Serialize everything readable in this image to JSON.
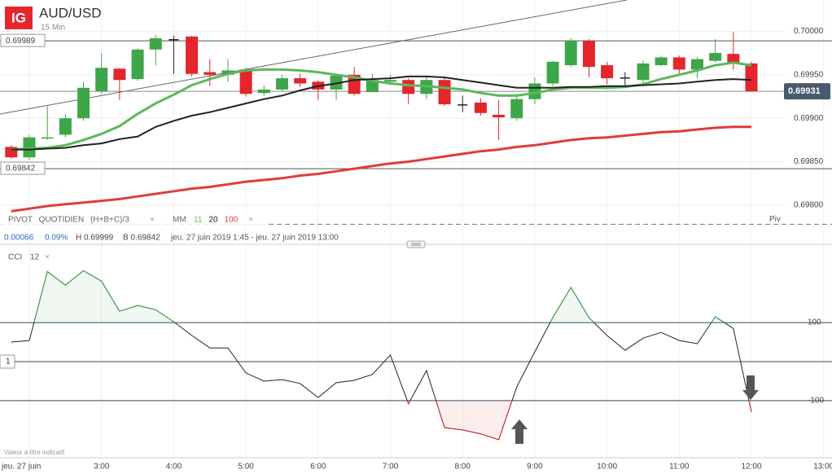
{
  "ui": {
    "logo": "IG",
    "symbol": "AUD/USD",
    "timeframe": "15 Min",
    "close_icon": "×",
    "info": {
      "change": "0.00066",
      "change_pct": "0.09%",
      "high": "H 0.69999",
      "low": "B 0.69842",
      "range": "jeu. 27 juin 2019 1:45 - jeu. 27 juin 2019 13:00"
    },
    "cci_label": "CCI",
    "cci_period": "12",
    "cci_marker": "1",
    "disclaimer": "Valeur à titre indicatif"
  },
  "chart_data": [
    {
      "type": "candlestick",
      "x": [
        1.75,
        2,
        2.25,
        2.5,
        2.75,
        3,
        3.25,
        3.5,
        3.75,
        4,
        4.25,
        4.5,
        4.75,
        5,
        5.25,
        5.5,
        5.75,
        6,
        6.25,
        6.5,
        6.75,
        7,
        7.25,
        7.5,
        7.75,
        8,
        8.25,
        8.5,
        8.75,
        9,
        9.25,
        9.5,
        9.75,
        10,
        10.25,
        10.5,
        10.75,
        11,
        11.25,
        11.5,
        11.75,
        12
      ],
      "open": [
        0.69867,
        0.69855,
        0.69877,
        0.69881,
        0.699,
        0.69931,
        0.69957,
        0.69945,
        0.69979,
        0.69991,
        0.69994,
        0.69953,
        0.6995,
        0.69956,
        0.69929,
        0.69933,
        0.69946,
        0.69942,
        0.69933,
        0.6995,
        0.6993,
        0.69942,
        0.69944,
        0.69928,
        0.69944,
        0.69916,
        0.69918,
        0.69904,
        0.699,
        0.69922,
        0.6994,
        0.69961,
        0.69989,
        0.69961,
        0.69947,
        0.69944,
        0.69961,
        0.6997,
        0.69956,
        0.69966,
        0.69974,
        0.69963
      ],
      "high": [
        0.69869,
        0.69881,
        0.69914,
        0.69905,
        0.69942,
        0.69975,
        0.69958,
        0.69981,
        0.69996,
        0.69995,
        0.69995,
        0.69968,
        0.69968,
        0.69958,
        0.69938,
        0.6995,
        0.69951,
        0.69944,
        0.69951,
        0.69959,
        0.69951,
        0.6995,
        0.69946,
        0.69949,
        0.69946,
        0.69926,
        0.69923,
        0.69921,
        0.69928,
        0.69947,
        0.69966,
        0.69992,
        0.69991,
        0.69965,
        0.69953,
        0.69966,
        0.69972,
        0.69972,
        0.6997,
        0.69991,
        0.69999,
        0.69965
      ],
      "low": [
        0.69853,
        0.69852,
        0.69875,
        0.69878,
        0.69897,
        0.69928,
        0.69921,
        0.69943,
        0.69961,
        0.69951,
        0.69948,
        0.69937,
        0.69942,
        0.69925,
        0.69926,
        0.69931,
        0.69936,
        0.69921,
        0.69921,
        0.69926,
        0.6993,
        0.69938,
        0.69916,
        0.69922,
        0.69914,
        0.69907,
        0.69903,
        0.69875,
        0.69897,
        0.69916,
        0.69937,
        0.69959,
        0.69947,
        0.69939,
        0.69938,
        0.6994,
        0.6996,
        0.6995,
        0.69946,
        0.69964,
        0.69956,
        0.69931
      ],
      "close": [
        0.69855,
        0.69878,
        0.69878,
        0.699,
        0.69935,
        0.69958,
        0.69944,
        0.69979,
        0.69992,
        0.69991,
        0.69951,
        0.6995,
        0.69955,
        0.69928,
        0.69933,
        0.69946,
        0.6994,
        0.69933,
        0.69949,
        0.69928,
        0.69944,
        0.69944,
        0.69928,
        0.69944,
        0.69916,
        0.69916,
        0.69906,
        0.69901,
        0.69922,
        0.6994,
        0.69965,
        0.69989,
        0.69959,
        0.69946,
        0.69947,
        0.69963,
        0.6997,
        0.69956,
        0.69968,
        0.69975,
        0.69963,
        0.69931
      ],
      "up_color": "#3ea64a",
      "down_color": "#e3262b",
      "flat_color": "#222",
      "legend_title": "MM",
      "series": [
        {
          "name": "11",
          "color": "#5cb85c",
          "values": [
            0.69864,
            0.69865,
            0.69866,
            0.69869,
            0.69875,
            0.69882,
            0.69891,
            0.69905,
            0.69917,
            0.69927,
            0.69938,
            0.69945,
            0.69951,
            0.69955,
            0.69956,
            0.69956,
            0.69955,
            0.69953,
            0.6995,
            0.69947,
            0.69943,
            0.6994,
            0.69938,
            0.69937,
            0.69935,
            0.69933,
            0.69929,
            0.69926,
            0.69926,
            0.69929,
            0.69933,
            0.69935,
            0.69935,
            0.69935,
            0.69936,
            0.69939,
            0.69945,
            0.6995,
            0.69955,
            0.69961,
            0.69964,
            0.69961
          ]
        },
        {
          "name": "20",
          "color": "#222222",
          "values": [
            0.69864,
            0.69864,
            0.69865,
            0.69866,
            0.69869,
            0.69871,
            0.69876,
            0.69879,
            0.6989,
            0.69897,
            0.69903,
            0.69907,
            0.69912,
            0.69917,
            0.69922,
            0.69926,
            0.69932,
            0.69937,
            0.6994,
            0.69944,
            0.69945,
            0.69946,
            0.69948,
            0.69948,
            0.69947,
            0.69944,
            0.69941,
            0.69938,
            0.69935,
            0.69935,
            0.69935,
            0.69936,
            0.69936,
            0.69937,
            0.69937,
            0.69938,
            0.69939,
            0.6994,
            0.69942,
            0.69944,
            0.69945,
            0.69944
          ]
        },
        {
          "name": "100",
          "color": "#e03c3c",
          "values": [
            0.69793,
            0.69796,
            0.69799,
            0.69801,
            0.69803,
            0.69805,
            0.69807,
            0.6981,
            0.69813,
            0.69816,
            0.69819,
            0.69821,
            0.69824,
            0.69827,
            0.69829,
            0.69831,
            0.69834,
            0.69836,
            0.69839,
            0.69842,
            0.69845,
            0.69848,
            0.6985,
            0.69853,
            0.69856,
            0.69859,
            0.69862,
            0.69864,
            0.69867,
            0.69869,
            0.69872,
            0.69875,
            0.69877,
            0.69878,
            0.6988,
            0.69882,
            0.69884,
            0.69885,
            0.69887,
            0.69889,
            0.6989,
            0.6989
          ]
        }
      ],
      "pivot": {
        "label": "PIVOT QUOTIDIEN (H+B+C)/3",
        "value": 0.69778,
        "tag": "Piv"
      },
      "hlines": [
        0.69989,
        0.69842
      ],
      "last_price": 0.69931,
      "xlim": [
        1.594,
        13.116
      ],
      "ylim": [
        0.69769,
        0.70036
      ],
      "yticks": [
        {
          "value": 0.7,
          "label": "0.70000"
        },
        {
          "value": 0.6995,
          "label": "0.69950"
        },
        {
          "value": 0.699,
          "label": "0.69900"
        },
        {
          "value": 0.6985,
          "label": "0.69850"
        },
        {
          "value": 0.698,
          "label": "0.69800"
        }
      ],
      "grid": true
    },
    {
      "type": "line",
      "x": [
        1.75,
        2,
        2.25,
        2.5,
        2.75,
        3,
        3.25,
        3.5,
        3.75,
        4,
        4.25,
        4.5,
        4.75,
        5,
        5.25,
        5.5,
        5.75,
        6,
        6.25,
        6.5,
        6.75,
        7,
        7.25,
        7.5,
        7.75,
        8,
        8.25,
        8.5,
        8.75,
        9,
        9.25,
        9.5,
        9.75,
        10,
        10.25,
        10.5,
        10.75,
        11,
        11.25,
        11.5,
        11.75,
        12
      ],
      "values": [
        50,
        54,
        231,
        196,
        233,
        206,
        129,
        144,
        133,
        102,
        67,
        35,
        35,
        -29,
        -50,
        -46,
        -56,
        -92,
        -54,
        -48,
        -33,
        17,
        -108,
        -23,
        -169,
        -175,
        -185,
        -200,
        -65,
        25,
        113,
        190,
        113,
        67,
        29,
        60,
        75,
        54,
        46,
        115,
        85,
        -129
      ],
      "color": "#222222",
      "over_color": "#3ea64a",
      "under_color": "#e3262b",
      "xlim": [
        1.594,
        13.116
      ],
      "ylim": [
        -242,
        290
      ],
      "yticks": [
        -100,
        100
      ],
      "zero_line": 0,
      "xticks": [
        {
          "value": 2,
          "label": "jeu. 27 juin"
        },
        {
          "value": 3,
          "label": "3:00"
        },
        {
          "value": 4,
          "label": "4:00"
        },
        {
          "value": 5,
          "label": "5:00"
        },
        {
          "value": 6,
          "label": "6:00"
        },
        {
          "value": 7,
          "label": "7:00"
        },
        {
          "value": 8,
          "label": "8:00"
        },
        {
          "value": 9,
          "label": "9:00"
        },
        {
          "value": 10,
          "label": "10:00"
        },
        {
          "value": 11,
          "label": "11:00"
        },
        {
          "value": 12,
          "label": "12:00"
        },
        {
          "value": 13,
          "label": "13:00"
        }
      ],
      "grid": true
    }
  ]
}
